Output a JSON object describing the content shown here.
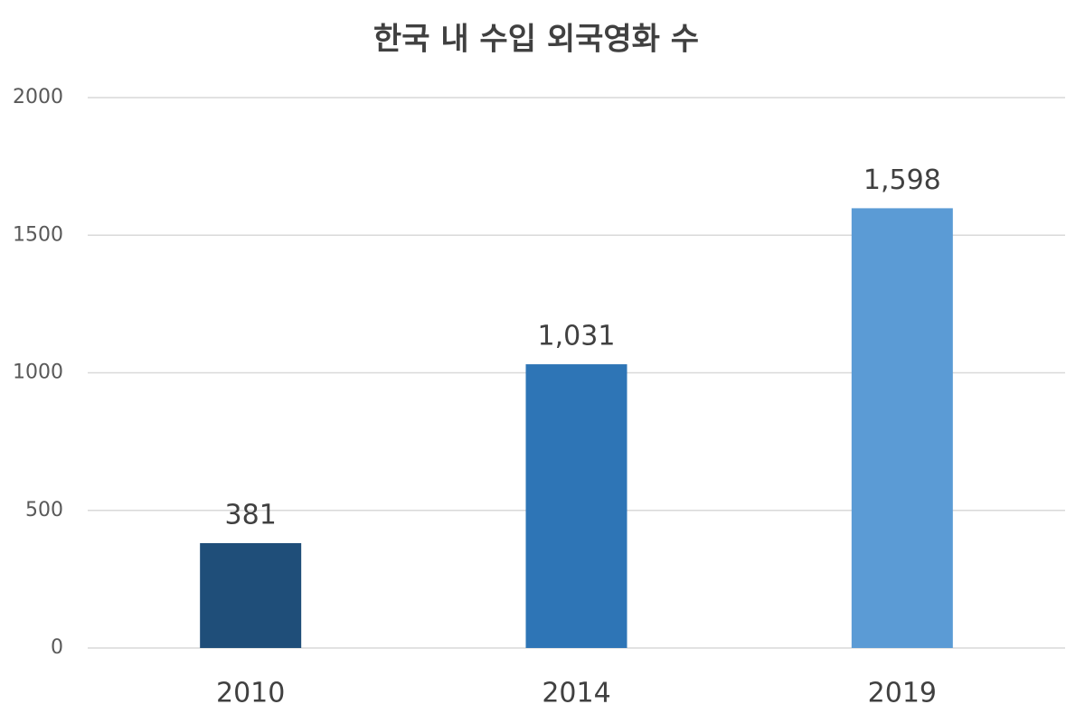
{
  "chart_data": {
    "type": "bar",
    "title": "한국 내 수입 외국영화 수",
    "categories": [
      "2010",
      "2014",
      "2019"
    ],
    "values": [
      381,
      1031,
      1598
    ],
    "value_labels": [
      "381",
      "1,031",
      "1,598"
    ],
    "colors": [
      "#1f4e79",
      "#2e75b6",
      "#5b9bd5"
    ],
    "ylim": [
      0,
      2000
    ],
    "yticks": [
      0,
      500,
      1000,
      1500,
      2000
    ],
    "grid": true
  }
}
